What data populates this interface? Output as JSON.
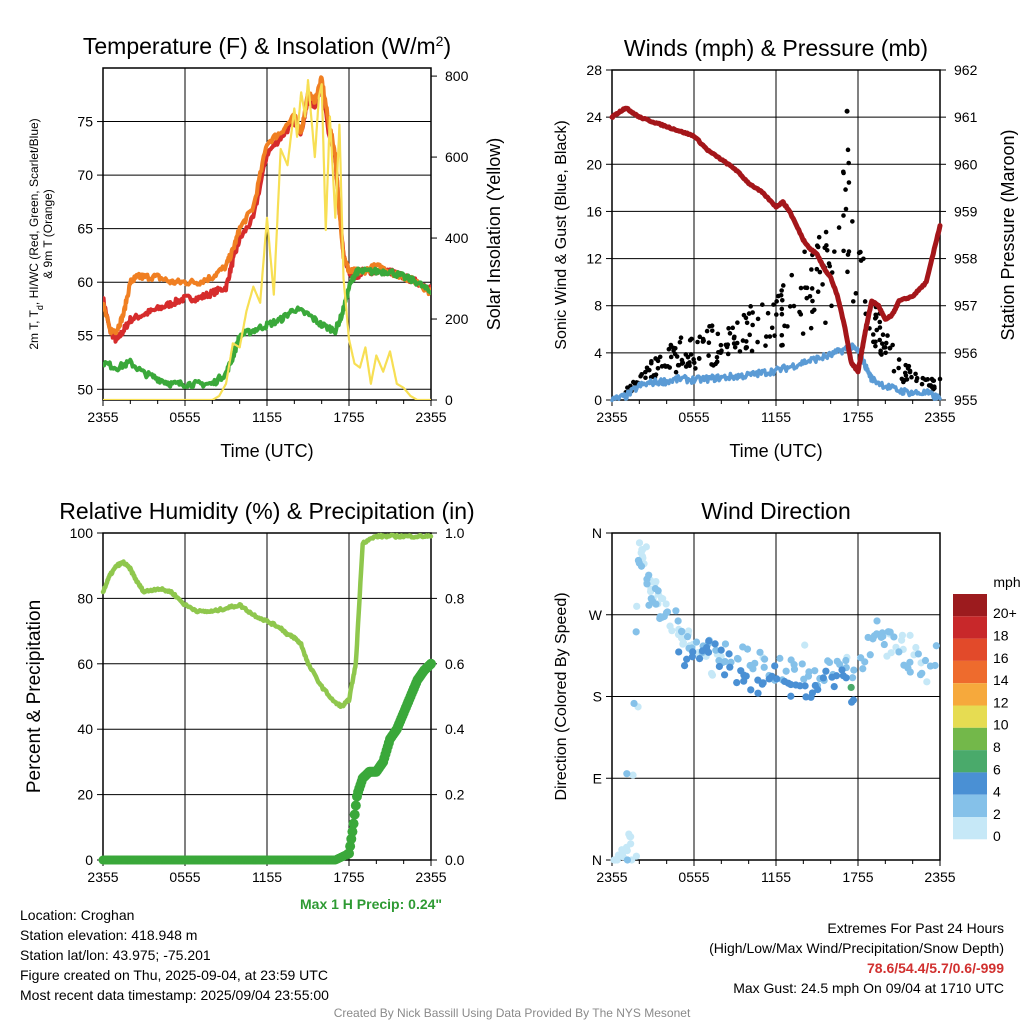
{
  "palette": {
    "red": "#d62c2c",
    "orange": "#f07f22",
    "green": "#3aa83a",
    "yellow": "#f7df54",
    "sonic_blue": "#5b9bd5",
    "gust_black": "#000000",
    "pressure_maroon": "#a4161a",
    "rh_green": "#8fc74d",
    "precip_green": "#3aa83a"
  },
  "panels": {
    "temperature": {
      "title": "Temperature (F) & Insolation (W/m",
      "title_sup": "2",
      "title_end": ")",
      "ylabel_left": "2m T, T",
      "ylabel_sub": "d",
      "ylabel_left2": ", HI/WC (Red, Green, Scarlet/Blue)",
      "ylabel_left3": "& 9m T (Orange)",
      "ylabel_right": "Solar Insolation (Yellow)",
      "xlabel": "Time (UTC)"
    },
    "winds": {
      "title": "Winds (mph) & Pressure (mb)",
      "ylabel_left": "Sonic Wind & Gust (Blue, Black)",
      "ylabel_right": "Station Pressure (Maroon)",
      "xlabel": "Time (UTC)"
    },
    "humidity": {
      "title": "Relative Humidity (%) & Precipitation (in)",
      "ylabel_left": "Percent & Precipitation"
    },
    "direction": {
      "title": "Wind Direction",
      "ylabel_left": "Direction (Colored By Speed)",
      "legend_title": "mph"
    }
  },
  "max_precip": "Max 1 H Precip: 0.24\"",
  "info_left": [
    "Location: Croghan",
    "Station elevation: 418.948 m",
    "Station lat/lon: 43.975; -75.201",
    "Figure created on Thu, 2025-09-04, at 23:59 UTC",
    "Most recent data timestamp: 2025/09/04 23:55:00"
  ],
  "info_right": {
    "line1": "Extremes For Past 24 Hours",
    "line2": "(High/Low/Max Wind/Precipitation/Snow Depth)",
    "extremes": "78.6/54.4/5.7/0.6/-999",
    "line4": "Max Gust: 24.5 mph On 09/04 at 1710 UTC"
  },
  "credit": "Created By Nick Bassill Using Data Provided By The NYS Mesonet",
  "chart_data": [
    {
      "id": "temperature",
      "type": "line",
      "x_ticks": [
        "2355",
        "0555",
        "1155",
        "1755",
        "2355"
      ],
      "x_hours_range": [
        0,
        24
      ],
      "ylim_left": [
        49,
        80
      ],
      "yticks_left": [
        50,
        55,
        60,
        65,
        70,
        75
      ],
      "ylim_right": [
        0,
        820
      ],
      "yticks_right": [
        0,
        200,
        400,
        600,
        800
      ],
      "series": [
        {
          "axis": "left",
          "color": "red",
          "x": [
            0,
            0.5,
            1,
            1.5,
            2,
            3,
            4,
            5,
            6,
            7,
            8,
            9,
            9.5,
            10,
            11,
            12,
            13,
            14,
            14.5,
            15,
            15.5,
            16,
            16.5,
            17,
            17.2,
            17.6,
            18,
            18.5,
            19,
            20,
            21,
            22,
            23,
            24
          ],
          "y": [
            58.5,
            55.5,
            54.5,
            55.5,
            56.5,
            57,
            57.5,
            58,
            58.5,
            58.5,
            59,
            59.5,
            62,
            64,
            66,
            72,
            73.5,
            75,
            74,
            77,
            76.5,
            78.5,
            74,
            71.5,
            68,
            62.5,
            61,
            60.5,
            61,
            61,
            61,
            60.5,
            60,
            59.5
          ]
        },
        {
          "axis": "left",
          "color": "orange",
          "x": [
            0,
            0.5,
            1,
            1.5,
            2,
            2.5,
            3,
            4,
            5,
            6,
            7,
            8,
            9,
            9.5,
            10,
            11,
            12,
            13,
            14,
            14.5,
            15,
            15.5,
            16,
            16.5,
            17,
            17.2,
            17.6,
            18,
            18.5,
            19,
            20,
            21,
            22,
            23,
            24
          ],
          "y": [
            58,
            55.5,
            55.5,
            57,
            60,
            60.5,
            60.5,
            60.5,
            60,
            60,
            60,
            60.5,
            61.5,
            63,
            65,
            67,
            73,
            74,
            75.5,
            74,
            77.5,
            77,
            79,
            75,
            72,
            68,
            62.5,
            61,
            61,
            61,
            61.5,
            61,
            60.5,
            60,
            59
          ]
        },
        {
          "axis": "left",
          "color": "green",
          "x": [
            0,
            1,
            2,
            3,
            4,
            5,
            6,
            7,
            8,
            9,
            9.5,
            10,
            11,
            12,
            13,
            14,
            15,
            16,
            17,
            17.5,
            18,
            18.5,
            19,
            20,
            21,
            22,
            23,
            24
          ],
          "y": [
            52.5,
            52,
            52.5,
            51.5,
            51,
            50.5,
            50.5,
            50.5,
            50.5,
            51.5,
            53,
            55,
            55.5,
            56,
            56.5,
            57.5,
            57,
            56,
            55.5,
            57,
            59.5,
            61,
            61,
            61,
            61,
            60.5,
            60,
            59
          ]
        },
        {
          "axis": "right",
          "color": "yellow",
          "x": [
            0,
            1,
            2,
            3,
            4,
            5,
            6,
            7,
            8,
            8.5,
            9,
            9.5,
            10,
            10.5,
            11,
            11.5,
            12,
            12.5,
            13,
            13.5,
            14,
            14.2,
            14.5,
            14.8,
            15,
            15.5,
            15.8,
            16,
            16.3,
            16.6,
            17,
            17.3,
            17.6,
            18,
            18.4,
            18.8,
            19.2,
            19.6,
            20,
            20.5,
            21,
            21.5,
            22,
            22.5,
            23,
            24
          ],
          "y": [
            0,
            0,
            0,
            0,
            0,
            0,
            0,
            0,
            0,
            10,
            40,
            140,
            130,
            220,
            280,
            240,
            450,
            260,
            620,
            580,
            720,
            650,
            760,
            700,
            790,
            600,
            750,
            780,
            420,
            700,
            450,
            680,
            300,
            150,
            90,
            80,
            130,
            40,
            110,
            70,
            120,
            40,
            30,
            10,
            0,
            0
          ]
        }
      ]
    },
    {
      "id": "winds",
      "type": "line+scatter",
      "x_ticks": [
        "2355",
        "0555",
        "1155",
        "1755",
        "2355"
      ],
      "x_hours_range": [
        0,
        24
      ],
      "ylim_left": [
        0,
        28
      ],
      "yticks_left": [
        0,
        4,
        8,
        12,
        16,
        20,
        24,
        28
      ],
      "ylim_right": [
        955,
        962
      ],
      "yticks_right": [
        955,
        956,
        957,
        958,
        959,
        960,
        961,
        962
      ],
      "sonic_wind": {
        "axis": "left",
        "x": [
          0,
          1,
          2,
          3,
          4,
          5,
          6,
          7,
          8,
          9,
          10,
          11,
          12,
          13,
          14,
          15,
          16,
          17,
          17.5,
          18,
          18.5,
          19,
          20,
          21,
          22,
          23,
          24
        ],
        "y": [
          0,
          0.3,
          1.2,
          1.5,
          1.6,
          1.8,
          1.7,
          1.8,
          1.9,
          2,
          2.1,
          2.3,
          2.5,
          2.8,
          3.2,
          3.5,
          3.8,
          4.3,
          4.5,
          4.2,
          3,
          1.8,
          1.2,
          0.8,
          0.6,
          0.6,
          0.1
        ]
      },
      "gust": {
        "axis": "left",
        "note": "scatter of wind gusts; range grows from ~1 mph early to 10-19 mph around 1500-1800 UTC, then 1-8 mph late",
        "x_range": [
          1,
          24
        ],
        "sample_points": [
          [
            1,
            1
          ],
          [
            3,
            4
          ],
          [
            5,
            6
          ],
          [
            7,
            7
          ],
          [
            9,
            8
          ],
          [
            10,
            9
          ],
          [
            12,
            10
          ],
          [
            14,
            14
          ],
          [
            15,
            16
          ],
          [
            16,
            16
          ],
          [
            17.2,
            24.5
          ],
          [
            18,
            18
          ],
          [
            19,
            10
          ],
          [
            21,
            4
          ],
          [
            23,
            2
          ]
        ]
      },
      "pressure": {
        "axis": "right",
        "x": [
          0,
          0.5,
          1,
          1.5,
          2,
          3,
          4,
          5,
          6,
          7,
          8,
          9,
          10,
          11,
          12,
          12.5,
          13,
          14,
          14.5,
          15,
          15.5,
          16,
          16.5,
          17,
          17.5,
          18,
          18.5,
          19,
          19.5,
          20,
          20.5,
          21,
          22,
          23,
          24
        ],
        "y": [
          961,
          961.1,
          961.2,
          961.1,
          961,
          960.9,
          960.8,
          960.7,
          960.6,
          960.3,
          960.1,
          959.9,
          959.6,
          959.4,
          959.1,
          959.2,
          959,
          958.4,
          958.2,
          958.1,
          957.8,
          957.6,
          957.2,
          956.6,
          955.8,
          955.6,
          956.4,
          957.1,
          957,
          956.7,
          956.8,
          957.1,
          957.2,
          957.5,
          958.7
        ]
      }
    },
    {
      "id": "humidity",
      "type": "line+scatter",
      "x_ticks": [
        "2355",
        "0555",
        "1155",
        "1755",
        "2355"
      ],
      "x_hours_range": [
        0,
        24
      ],
      "ylim_left": [
        0,
        100
      ],
      "yticks_left": [
        0,
        20,
        40,
        60,
        80,
        100
      ],
      "ylim_right": [
        0,
        1
      ],
      "yticks_right": [
        "0.0",
        "0.2",
        "0.4",
        "0.6",
        "0.8",
        "1.0"
      ],
      "rh": {
        "axis": "left",
        "x": [
          0,
          0.5,
          1,
          1.5,
          2,
          2.5,
          3,
          4,
          5,
          6,
          7,
          8,
          9,
          10,
          11,
          12,
          13,
          13.5,
          14,
          14.5,
          15,
          16,
          17,
          17.5,
          18,
          18.5,
          19,
          20,
          21,
          22,
          23,
          24
        ],
        "y": [
          82,
          87,
          90,
          91,
          89,
          85,
          82,
          83,
          82,
          78,
          76,
          76,
          77,
          78,
          75,
          73,
          71,
          69,
          68,
          66,
          60,
          53,
          48,
          47,
          49,
          60,
          97,
          99,
          99,
          99,
          99,
          99
        ]
      },
      "precip": {
        "axis": "right",
        "x": [
          0,
          17,
          18,
          18.3,
          18.6,
          19,
          19.5,
          20,
          20.5,
          21,
          21.5,
          22,
          22.5,
          23,
          23.5,
          24
        ],
        "y": [
          0,
          0,
          0.02,
          0.1,
          0.2,
          0.25,
          0.27,
          0.27,
          0.3,
          0.37,
          0.4,
          0.45,
          0.5,
          0.55,
          0.58,
          0.6
        ]
      }
    },
    {
      "id": "direction",
      "type": "scatter",
      "x_ticks": [
        "2355",
        "0555",
        "1155",
        "1755",
        "2355"
      ],
      "x_hours_range": [
        0,
        24
      ],
      "ylim": [
        0,
        360
      ],
      "yticks_labels": [
        "N",
        "E",
        "S",
        "W",
        "N"
      ],
      "yticks_values": [
        0,
        90,
        180,
        270,
        360
      ],
      "legend": {
        "title": "mph",
        "labels": [
          "0",
          "2",
          "4",
          "6",
          "8",
          "10",
          "12",
          "14",
          "16",
          "18",
          "20+"
        ],
        "colors": [
          "#c6e8f7",
          "#85c1e9",
          "#4a90d4",
          "#4aaa6b",
          "#73b84a",
          "#e6dc52",
          "#f6a93c",
          "#ee6b2d",
          "#e24a2a",
          "#c8282a",
          "#9c1b1e"
        ]
      },
      "groups": [
        {
          "speed_bin": 0,
          "x_hours": [
            0,
            0.5,
            1,
            1.3,
            1.6,
            2,
            2.2,
            2.5,
            3,
            3.3,
            4,
            5,
            5.5,
            6,
            7,
            8,
            20,
            21,
            22,
            23.5
          ],
          "deg": [
            0,
            0,
            10,
            20,
            5,
            355,
            340,
            320,
            305,
            290,
            270,
            250,
            240,
            230,
            220,
            215,
            230,
            250,
            240,
            200
          ]
        },
        {
          "speed_bin": 2,
          "x_hours": [
            1,
            2,
            2.5,
            3,
            3.5,
            4,
            5,
            6,
            7,
            8,
            9,
            10,
            11,
            12,
            13,
            14,
            15,
            16,
            17,
            18,
            19,
            19.5,
            20,
            21,
            22,
            23,
            24
          ],
          "deg": [
            5,
            320,
            300,
            290,
            280,
            265,
            255,
            245,
            235,
            230,
            225,
            220,
            215,
            212,
            210,
            208,
            205,
            205,
            210,
            215,
            240,
            270,
            250,
            230,
            220,
            215,
            225
          ]
        },
        {
          "speed_bin": 4,
          "x_hours": [
            5,
            6,
            7,
            8,
            9,
            10,
            11,
            12,
            13,
            14,
            15,
            16,
            17,
            18
          ],
          "deg": [
            215,
            220,
            240,
            220,
            210,
            200,
            195,
            200,
            190,
            185,
            190,
            200,
            195,
            175
          ]
        },
        {
          "speed_bin": 6,
          "x_hours": [
            17.5
          ],
          "deg": [
            190
          ]
        }
      ]
    }
  ]
}
